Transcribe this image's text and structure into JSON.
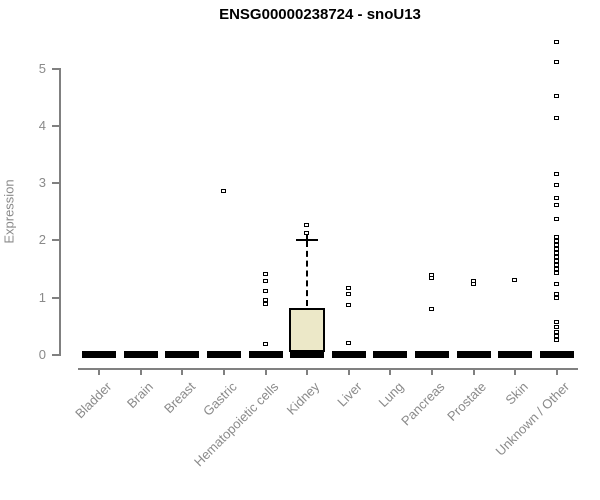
{
  "chart_data": {
    "type": "boxplot",
    "title": "ENSG00000238724 - snoU13",
    "xlabel": "",
    "ylabel": "Expression",
    "ylim": [
      0,
      5.6
    ],
    "yticks": [
      0,
      1,
      2,
      3,
      4,
      5
    ],
    "grid": false,
    "legend": false,
    "box_fill_color": "#ece8c8",
    "axis_color": "#808080",
    "tick_label_color": "#8a8a8a",
    "categories": [
      "Bladder",
      "Brain",
      "Breast",
      "Gastric",
      "Hematopoietic cells",
      "Kidney",
      "Liver",
      "Lung",
      "Pancreas",
      "Prostate",
      "Skin",
      "Unknown / Other"
    ],
    "series": [
      {
        "name": "Bladder",
        "q1": 0,
        "median": 0,
        "q3": 0,
        "whisker_low": 0,
        "whisker_high": 0,
        "outliers": []
      },
      {
        "name": "Brain",
        "q1": 0,
        "median": 0,
        "q3": 0,
        "whisker_low": 0,
        "whisker_high": 0,
        "outliers": []
      },
      {
        "name": "Breast",
        "q1": 0,
        "median": 0,
        "q3": 0,
        "whisker_low": 0,
        "whisker_high": 0,
        "outliers": []
      },
      {
        "name": "Gastric",
        "q1": 0,
        "median": 0,
        "q3": 0,
        "whisker_low": 0,
        "whisker_high": 0,
        "outliers": [
          2.85
        ]
      },
      {
        "name": "Hematopoietic cells",
        "q1": 0,
        "median": 0,
        "q3": 0,
        "whisker_low": 0,
        "whisker_high": 0,
        "outliers": [
          1.4,
          1.28,
          1.1,
          0.95,
          0.88,
          0.18
        ]
      },
      {
        "name": "Kidney",
        "q1": 0,
        "median": 0,
        "q3": 0.82,
        "whisker_low": 0,
        "whisker_high": 2.02,
        "outliers": [
          2.25,
          2.12
        ]
      },
      {
        "name": "Liver",
        "q1": 0,
        "median": 0,
        "q3": 0,
        "whisker_low": 0,
        "whisker_high": 0,
        "outliers": [
          1.15,
          1.05,
          0.85,
          0.2
        ]
      },
      {
        "name": "Lung",
        "q1": 0,
        "median": 0,
        "q3": 0,
        "whisker_low": 0,
        "whisker_high": 0,
        "outliers": []
      },
      {
        "name": "Pancreas",
        "q1": 0,
        "median": 0,
        "q3": 0,
        "whisker_low": 0,
        "whisker_high": 0,
        "outliers": [
          1.38,
          1.33,
          0.78
        ]
      },
      {
        "name": "Prostate",
        "q1": 0,
        "median": 0,
        "q3": 0,
        "whisker_low": 0,
        "whisker_high": 0,
        "outliers": [
          1.28,
          1.22
        ]
      },
      {
        "name": "Skin",
        "q1": 0,
        "median": 0,
        "q3": 0,
        "whisker_low": 0,
        "whisker_high": 0,
        "outliers": [
          1.3
        ]
      },
      {
        "name": "Unknown / Other",
        "q1": 0,
        "median": 0,
        "q3": 0,
        "whisker_low": 0,
        "whisker_high": 0,
        "outliers": [
          5.45,
          5.1,
          4.5,
          4.12,
          3.15,
          2.95,
          2.72,
          2.6,
          2.35,
          2.05,
          1.98,
          1.91,
          1.84,
          1.77,
          1.7,
          1.63,
          1.56,
          1.49,
          1.42,
          1.23,
          1.05,
          0.98,
          0.55,
          0.47,
          0.39,
          0.31,
          0.24
        ]
      }
    ]
  }
}
